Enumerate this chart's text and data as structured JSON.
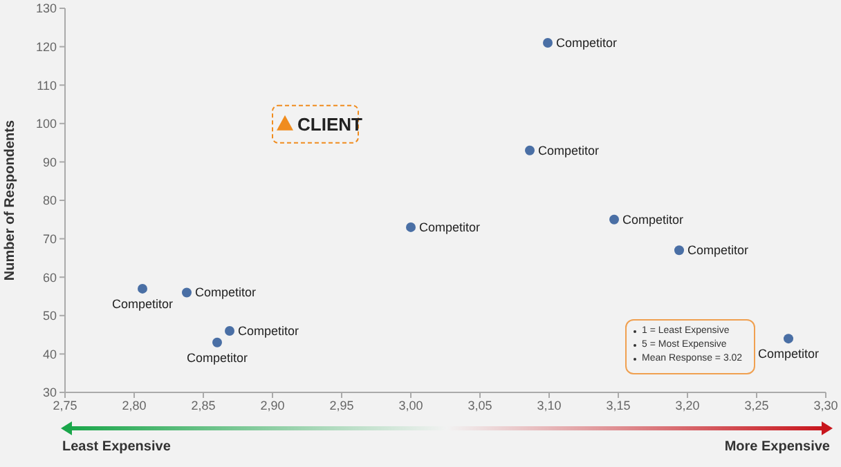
{
  "chart_data": {
    "type": "scatter",
    "xlabel": null,
    "ylabel": "Number of Respondents",
    "series": [
      {
        "name": "Competitor",
        "color": "#4a6fa5",
        "marker": "circle",
        "x": [
          2.806,
          2.838,
          2.869,
          2.86,
          3.0,
          3.099,
          3.086,
          3.147,
          3.194,
          3.273
        ],
        "values": [
          57,
          56,
          46,
          43,
          73,
          121,
          93,
          75,
          67,
          44
        ]
      },
      {
        "name": "CLIENT",
        "color": "#f08c1e",
        "marker": "triangle",
        "x": [
          2.909
        ],
        "values": [
          100
        ]
      }
    ],
    "xlim": [
      2.75,
      3.3
    ],
    "xticks": [
      {
        "value": 2.75,
        "label": "2,75"
      },
      {
        "value": 2.8,
        "label": "2,80"
      },
      {
        "value": 2.85,
        "label": "2,85"
      },
      {
        "value": 2.9,
        "label": "2,90"
      },
      {
        "value": 2.95,
        "label": "2,95"
      },
      {
        "value": 3.0,
        "label": "3,00"
      },
      {
        "value": 3.05,
        "label": "3,05"
      },
      {
        "value": 3.1,
        "label": "3,10"
      },
      {
        "value": 3.15,
        "label": "3,15"
      },
      {
        "value": 3.2,
        "label": "3,20"
      },
      {
        "value": 3.25,
        "label": "3,25"
      },
      {
        "value": 3.3,
        "label": "3,30"
      }
    ],
    "ylim": [
      30,
      130
    ],
    "yticks": [
      30,
      40,
      50,
      60,
      70,
      80,
      90,
      100,
      110,
      120,
      130
    ],
    "grid": false,
    "legend": false,
    "annotations": [
      "1 = Least Expensive",
      "5 = Most Expensive",
      "Mean Response = 3.02",
      "Least Expensive",
      "More Expensive"
    ]
  }
}
